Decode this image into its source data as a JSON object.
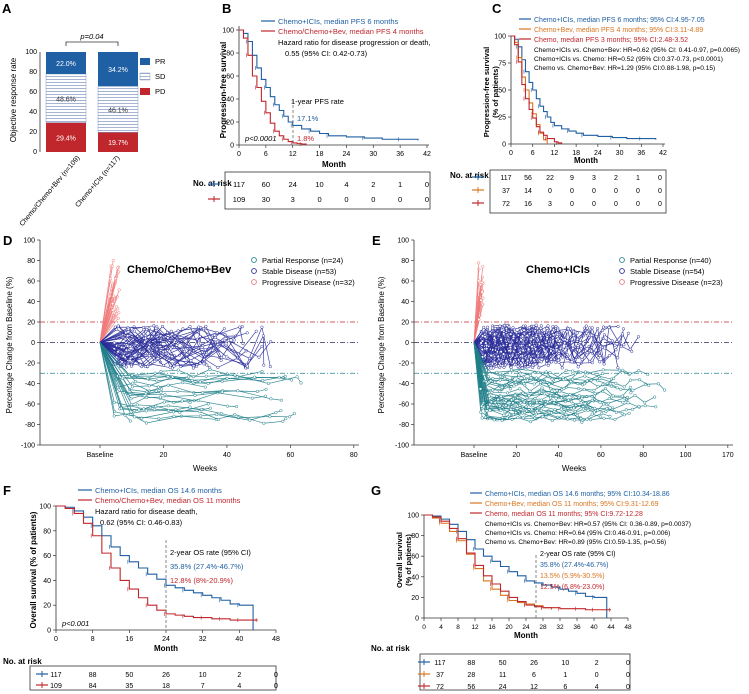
{
  "colors": {
    "blue": "#1f5fa3",
    "red": "#c0272d",
    "orange": "#d9741f",
    "teal": "#20808a",
    "navy": "#2b2e9a",
    "pink": "#f07a7a",
    "ticks": "#333333"
  },
  "panels": {
    "A": {
      "label": "A",
      "ylabel": "Objective response rate",
      "y_ticks": [
        "0",
        "20",
        "40",
        "60",
        "80",
        "100"
      ],
      "bars": [
        {
          "name": "Chemo/Chemo+Bev (n=109)",
          "segments": [
            {
              "cat": "PD",
              "value": 29.4,
              "label": "29.4%"
            },
            {
              "cat": "SD",
              "value": 48.6,
              "label": "48.6%"
            },
            {
              "cat": "PR",
              "value": 22.0,
              "label": "22.0%"
            }
          ]
        },
        {
          "name": "Chemo+ICIs (n=117)",
          "segments": [
            {
              "cat": "PD",
              "value": 19.7,
              "label": "19.7%"
            },
            {
              "cat": "SD",
              "value": 46.1,
              "label": "46.1%"
            },
            {
              "cat": "PR",
              "value": 34.2,
              "label": "34.2%"
            }
          ]
        }
      ],
      "legend": [
        "PR",
        "SD",
        "PD"
      ],
      "pvalue": "p=0.04"
    },
    "B": {
      "label": "B",
      "ylabel": "Progression-free survival",
      "xlabel": "Month",
      "y_ticks": [
        "0",
        "20",
        "40",
        "60",
        "80",
        "100"
      ],
      "x_ticks": [
        "0",
        "6",
        "12",
        "18",
        "24",
        "30",
        "36",
        "42"
      ],
      "legend": [
        "Chemo+ICIs, median PFS 6 months",
        "Chemo/Chemo+Bev, median PFS 4 months"
      ],
      "hazard_line1": "Hazard ratio for disease progression or death,",
      "hazard_line2": "0.55 (95% CI: 0.42-0.73)",
      "rate_title": "1-year PFS rate",
      "rate_blue": "17.1%",
      "rate_red": "1.8%",
      "pvalue": "p<0.0001",
      "risk_title": "No. at risk",
      "risk_rows": [
        [
          "117",
          "60",
          "24",
          "10",
          "4",
          "2",
          "1",
          "0"
        ],
        [
          "109",
          "30",
          "3",
          "0",
          "0",
          "0",
          "0",
          "0"
        ]
      ]
    },
    "C": {
      "label": "C",
      "ylabel1": "Progression-free survival",
      "ylabel2": "(% of patients)",
      "xlabel": "Month",
      "y_ticks": [
        "0",
        "25",
        "50",
        "75",
        "100"
      ],
      "x_ticks": [
        "0",
        "6",
        "12",
        "18",
        "24",
        "30",
        "36",
        "42"
      ],
      "legend": [
        "Chemo+ICIs, median PFS 6 months; 95% CI:4.95-7.05",
        "Chemo+Bev, median PFS 4 months; 95% CI:3.11-4.89",
        "Chemo, median PFS 3 months; 95% CI:2.48-3.52"
      ],
      "stats": [
        "Chemo+ICIs vs. Chemo+Bev: HR=0.62 (95% CI: 0.41-0.97, p=0.0065)",
        "Chemo+ICIs vs. Chemo: HR=0.52 (95% CI:0.37-0.73, p<0.0001)",
        "Chemo vs. Chemo+Bev: HR=1.29 (95% CI:0.88-1.98, p=0.15)"
      ],
      "risk_title": "No. at risk",
      "risk_rows": [
        [
          "117",
          "56",
          "22",
          "9",
          "3",
          "2",
          "1",
          "0"
        ],
        [
          "37",
          "14",
          "0",
          "0",
          "0",
          "0",
          "0",
          "0"
        ],
        [
          "72",
          "16",
          "3",
          "0",
          "0",
          "0",
          "0",
          "0"
        ]
      ]
    },
    "D": {
      "label": "D",
      "title": "Chemo/Chemo+Bev",
      "ylabel": "Percentage Change from Baseline (%)",
      "xlabel": "Weeks",
      "y_ticks": [
        "100",
        "80",
        "60",
        "40",
        "20",
        "0",
        "-20",
        "-40",
        "-60",
        "-80",
        "-100"
      ],
      "x_ticks": [
        "Baseline",
        "20",
        "40",
        "60",
        "80"
      ],
      "legend": [
        "Partial Response (n=24)",
        "Stable Disease (n=53)",
        "Progressive Disease (n=32)"
      ]
    },
    "E": {
      "label": "E",
      "title": "Chemo+ICIs",
      "ylabel": "Percentage Change from Baseline (%)",
      "xlabel": "Weeks",
      "y_ticks": [
        "100",
        "80",
        "60",
        "40",
        "20",
        "0",
        "-20",
        "-40",
        "-60",
        "-80",
        "-100"
      ],
      "x_ticks": [
        "Baseline",
        "20",
        "40",
        "60",
        "80",
        "100",
        "170"
      ],
      "legend": [
        "Partial Response (n=40)",
        "Stable Disease (n=54)",
        "Progressive Disease (n=23)"
      ]
    },
    "F": {
      "label": "F",
      "ylabel": "Overall survival (% of patients)",
      "xlabel": "Month",
      "y_ticks": [
        "0",
        "20",
        "40",
        "60",
        "80",
        "100"
      ],
      "x_ticks": [
        "0",
        "8",
        "16",
        "24",
        "32",
        "40",
        "48"
      ],
      "legend": [
        "Chemo+ICIs, median OS 14.6 months",
        "Chemo/Chemo+Bev, median OS 11 months"
      ],
      "hazard_line1": "Hazard ratio for disease death,",
      "hazard_line2": "0.62 (95% CI: 0.46-0.83)",
      "rate_title": "2-year OS rate (95% CI)",
      "rate_blue": "35.8% (27.4%-46.7%)",
      "rate_red": "12.8% (8%-20.9%)",
      "pvalue": "p<0.001",
      "risk_title": "No. at risk",
      "risk_rows": [
        [
          "117",
          "88",
          "50",
          "26",
          "10",
          "2",
          "0"
        ],
        [
          "109",
          "84",
          "35",
          "18",
          "7",
          "4",
          "0"
        ]
      ]
    },
    "G": {
      "label": "G",
      "ylabel1": "Overall survival",
      "ylabel2": "(% of patients)",
      "xlabel": "Month",
      "y_ticks": [
        "0",
        "20",
        "40",
        "60",
        "80",
        "100"
      ],
      "x_ticks": [
        "0",
        "4",
        "8",
        "12",
        "16",
        "20",
        "24",
        "28",
        "32",
        "36",
        "40",
        "44",
        "48"
      ],
      "legend": [
        "Chemo+ICIs, median OS 14.6 months; 95% CI:10.34-18.86",
        "Chemo+Bev, median OS 11 months; 95% CI:9.31-12.69",
        "Chemo, median OS 11 months; 95% CI:9.72-12.28"
      ],
      "stats": [
        "Chemo+ICIs vs. Chemo+Bev: HR=0.57 (95% CI: 0.36-0.89, p=0.0037)",
        "Chemo+ICIs vs. Chemo: HR=0.64 (95% CI:0.46-0.91, p=0.006)",
        "Chemo vs. Chemo+Bev: HR=0.89 (95% CI:0.59-1.35, p=0.56)"
      ],
      "rate_title": "2-year OS rate (95% CI)",
      "rates": [
        "35.8% (27.4%-46.7%)",
        "13.5% (5.9%-30.5%)",
        "12.5% (6.8%-23.0%)"
      ],
      "risk_title": "No. at risk",
      "risk_rows": [
        [
          "117",
          "88",
          "50",
          "26",
          "10",
          "2",
          "0"
        ],
        [
          "37",
          "28",
          "11",
          "6",
          "1",
          "0",
          "0"
        ],
        [
          "72",
          "56",
          "24",
          "12",
          "6",
          "4",
          "0"
        ]
      ]
    }
  },
  "chart_data": [
    {
      "panel": "A",
      "type": "bar",
      "title": "",
      "ylabel": "Objective response rate",
      "ylim": [
        0,
        100
      ],
      "categories": [
        "Chemo/Chemo+Bev (n=109)",
        "Chemo+ICIs (n=117)"
      ],
      "series": [
        {
          "name": "PD",
          "values": [
            29.4,
            19.7
          ]
        },
        {
          "name": "SD",
          "values": [
            48.6,
            46.1
          ]
        },
        {
          "name": "PR",
          "values": [
            22.0,
            34.2
          ]
        }
      ]
    },
    {
      "panel": "B",
      "type": "line",
      "xlabel": "Month",
      "ylabel": "Progression-free survival",
      "xlim": [
        0,
        42
      ],
      "ylim": [
        0,
        100
      ],
      "series": [
        {
          "name": "Chemo+ICIs",
          "x": [
            0,
            1,
            2,
            3,
            4,
            5,
            6,
            7,
            8,
            9,
            10,
            11,
            12,
            14,
            16,
            18,
            20,
            24,
            28,
            32,
            36,
            40
          ],
          "y": [
            100,
            97,
            90,
            78,
            67,
            57,
            50,
            42,
            35,
            30,
            25,
            20,
            17,
            14,
            12,
            10,
            8,
            7,
            6,
            5,
            5,
            4
          ]
        },
        {
          "name": "Chemo/Chemo+Bev",
          "x": [
            0,
            1,
            2,
            3,
            4,
            5,
            6,
            7,
            8,
            9,
            10,
            11,
            12,
            13,
            14,
            15
          ],
          "y": [
            100,
            93,
            78,
            60,
            50,
            38,
            28,
            19,
            12,
            8,
            5,
            3,
            1.8,
            1.2,
            0.8,
            0
          ]
        }
      ]
    },
    {
      "panel": "C",
      "type": "line",
      "xlabel": "Month",
      "ylabel": "Progression-free survival (% of patients)",
      "xlim": [
        0,
        42
      ],
      "ylim": [
        0,
        100
      ],
      "series": [
        {
          "name": "Chemo+ICIs",
          "x": [
            0,
            1,
            2,
            3,
            4,
            5,
            6,
            7,
            8,
            9,
            10,
            11,
            12,
            14,
            16,
            18,
            20,
            24,
            28,
            32,
            36,
            40
          ],
          "y": [
            100,
            97,
            90,
            78,
            67,
            57,
            50,
            42,
            35,
            30,
            25,
            20,
            17,
            14,
            12,
            10,
            8,
            7,
            6,
            5,
            5,
            4
          ]
        },
        {
          "name": "Chemo+Bev",
          "x": [
            0,
            1,
            2,
            3,
            4,
            5,
            6,
            7,
            8,
            9,
            10
          ],
          "y": [
            100,
            94,
            80,
            62,
            50,
            38,
            28,
            18,
            10,
            4,
            0
          ]
        },
        {
          "name": "Chemo",
          "x": [
            0,
            1,
            2,
            3,
            4,
            5,
            6,
            7,
            8,
            9,
            10,
            12,
            13,
            14
          ],
          "y": [
            100,
            92,
            76,
            55,
            42,
            32,
            24,
            16,
            11,
            8,
            5,
            2,
            1,
            0
          ]
        }
      ]
    },
    {
      "panel": "D",
      "type": "line",
      "title": "Chemo/Chemo+Bev",
      "xlabel": "Weeks",
      "ylabel": "Percentage Change from Baseline (%)",
      "ylim": [
        -100,
        100
      ],
      "reference_lines": [
        20,
        0,
        -30
      ],
      "series": [
        {
          "name": "Partial Response",
          "n": 24
        },
        {
          "name": "Stable Disease",
          "n": 53
        },
        {
          "name": "Progressive Disease",
          "n": 32
        }
      ]
    },
    {
      "panel": "E",
      "type": "line",
      "title": "Chemo+ICIs",
      "xlabel": "Weeks",
      "ylabel": "Percentage Change from Baseline (%)",
      "ylim": [
        -100,
        100
      ],
      "reference_lines": [
        20,
        0,
        -30
      ],
      "series": [
        {
          "name": "Partial Response",
          "n": 40
        },
        {
          "name": "Stable Disease",
          "n": 54
        },
        {
          "name": "Progressive Disease",
          "n": 23
        }
      ]
    },
    {
      "panel": "F",
      "type": "line",
      "xlabel": "Month",
      "ylabel": "Overall survival (% of patients)",
      "xlim": [
        0,
        48
      ],
      "ylim": [
        0,
        100
      ],
      "series": [
        {
          "name": "Chemo+ICIs",
          "x": [
            0,
            2,
            4,
            6,
            8,
            10,
            12,
            14,
            16,
            18,
            20,
            22,
            24,
            26,
            28,
            30,
            32,
            34,
            36,
            38,
            40,
            42,
            43
          ],
          "y": [
            100,
            99,
            96,
            91,
            84,
            76,
            67,
            60,
            55,
            50,
            45,
            41,
            36,
            34,
            32,
            30,
            28,
            26,
            24,
            21,
            20,
            20,
            0
          ]
        },
        {
          "name": "Chemo/Chemo+Bev",
          "x": [
            0,
            2,
            4,
            6,
            8,
            10,
            12,
            14,
            16,
            18,
            20,
            22,
            24,
            26,
            28,
            30,
            32,
            34,
            36,
            38,
            40,
            42,
            44
          ],
          "y": [
            100,
            98,
            94,
            86,
            76,
            62,
            50,
            40,
            33,
            26,
            20,
            16,
            13,
            12,
            11,
            10,
            10,
            9,
            9,
            8,
            8,
            8,
            8
          ]
        }
      ]
    },
    {
      "panel": "G",
      "type": "line",
      "xlabel": "Month",
      "ylabel": "Overall survival (% of patients)",
      "xlim": [
        0,
        48
      ],
      "ylim": [
        0,
        100
      ],
      "series": [
        {
          "name": "Chemo+ICIs",
          "x": [
            0,
            2,
            4,
            6,
            8,
            10,
            12,
            14,
            16,
            18,
            20,
            22,
            24,
            26,
            28,
            30,
            32,
            34,
            36,
            38,
            40,
            42,
            43
          ],
          "y": [
            100,
            99,
            96,
            91,
            84,
            76,
            67,
            60,
            55,
            50,
            45,
            41,
            36,
            34,
            32,
            30,
            28,
            26,
            24,
            21,
            20,
            20,
            0
          ]
        },
        {
          "name": "Chemo+Bev",
          "x": [
            0,
            2,
            4,
            6,
            8,
            10,
            12,
            14,
            16,
            18,
            20,
            22,
            24,
            26,
            28,
            30
          ],
          "y": [
            100,
            97,
            92,
            84,
            75,
            62,
            48,
            36,
            28,
            22,
            17,
            15,
            13.5,
            12,
            10,
            8
          ]
        },
        {
          "name": "Chemo",
          "x": [
            0,
            2,
            4,
            6,
            8,
            10,
            12,
            14,
            16,
            18,
            20,
            22,
            24,
            26,
            28,
            30,
            32,
            34,
            36,
            38,
            40,
            42,
            44
          ],
          "y": [
            100,
            98,
            94,
            87,
            77,
            63,
            51,
            41,
            33,
            26,
            20,
            16,
            12.5,
            11,
            10,
            10,
            9,
            9,
            9,
            8,
            8,
            8,
            8
          ]
        }
      ]
    }
  ]
}
